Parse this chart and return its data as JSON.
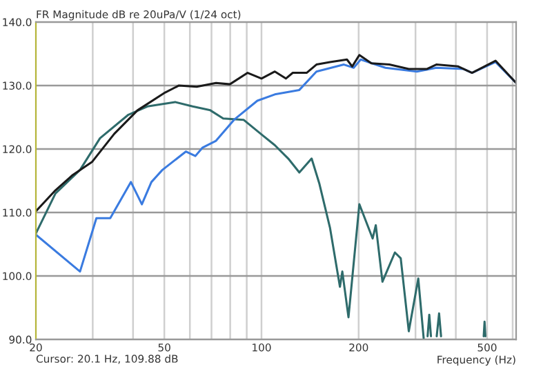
{
  "chart_data": {
    "type": "line",
    "title": "FR Magnitude dB re 20uPa/V (1/24 oct)",
    "xlabel": "Frequency (Hz)",
    "annotations": [
      "Cursor: 20.1 Hz, 109.88 dB"
    ],
    "log": "x",
    "grid": true,
    "legend": false,
    "marker": "none",
    "line_style": "solid",
    "xlim": [
      20,
      615
    ],
    "xticks": [
      20,
      50,
      100,
      200,
      500
    ],
    "ylim": [
      90,
      140
    ],
    "yticks": [
      {
        "value": 90,
        "label": "90.0"
      },
      {
        "value": 100,
        "label": "100.0"
      },
      {
        "value": 110,
        "label": "110.0"
      },
      {
        "value": 120,
        "label": "120.0"
      },
      {
        "value": 130,
        "label": "130.0"
      },
      {
        "value": 140,
        "label": "140.0"
      }
    ],
    "series": [
      {
        "color": "#2e6b6b",
        "x": [
          20,
          23,
          27.4,
          31.6,
          38.7,
          44.3,
          54,
          61.2,
          69.4,
          76.1,
          88,
          100,
          110,
          121,
          131,
          143,
          151,
          163,
          175,
          178,
          186,
          201,
          221,
          226,
          237,
          259,
          270,
          286,
          306,
          318,
          321,
          327,
          331,
          335,
          341,
          349,
          355,
          360,
          365,
          488,
          491,
          494
        ],
        "values": [
          106.7,
          113,
          116.7,
          121.7,
          125.4,
          126.7,
          127.4,
          126.7,
          126.1,
          124.8,
          124.6,
          122.3,
          120.6,
          118.5,
          116.3,
          118.5,
          114.6,
          107.6,
          98.3,
          100.7,
          93.5,
          111.3,
          105.9,
          108,
          99.1,
          103.7,
          102.8,
          91.3,
          99.6,
          90.2,
          null,
          90.5,
          93.9,
          90.5,
          null,
          90.5,
          94.1,
          90.5,
          null,
          90.5,
          92.8,
          90.5
        ]
      },
      {
        "color": "#3a7be0",
        "x": [
          20,
          27.4,
          30.8,
          34,
          39.4,
          42.6,
          45.6,
          49.3,
          58.3,
          62.4,
          65.6,
          72.3,
          82.2,
          97.1,
          110,
          131,
          148,
          180,
          193,
          203,
          242,
          303,
          348,
          423,
          449,
          531,
          615
        ],
        "values": [
          106.5,
          100.7,
          109.1,
          109.1,
          114.8,
          111.3,
          114.8,
          116.7,
          119.6,
          118.9,
          120.2,
          121.3,
          124.6,
          127.6,
          128.6,
          129.3,
          132.2,
          133.3,
          132.8,
          134.1,
          132.8,
          132.2,
          132.8,
          132.6,
          132,
          133.7,
          130.4
        ]
      },
      {
        "color": "#1a1a1a",
        "x": [
          20,
          23,
          26,
          29.9,
          35,
          41.3,
          50.3,
          55.5,
          63,
          72.3,
          79.8,
          90.6,
          100,
          110,
          119,
          125,
          138,
          148,
          163,
          184,
          191,
          201,
          219,
          249,
          286,
          325,
          348,
          407,
          449,
          531,
          615
        ],
        "values": [
          110.2,
          113.5,
          115.9,
          118,
          122.4,
          126.1,
          128.9,
          130,
          129.8,
          130.4,
          130.2,
          132,
          131.1,
          132.2,
          131.1,
          132,
          132,
          133.3,
          133.7,
          134.1,
          133,
          134.8,
          133.5,
          133.3,
          132.6,
          132.6,
          133.3,
          133,
          132,
          133.9,
          130.4
        ]
      }
    ]
  }
}
